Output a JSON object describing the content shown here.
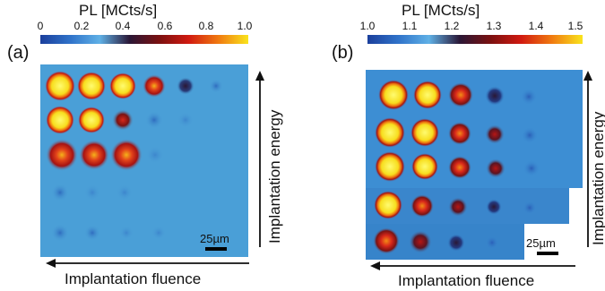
{
  "colormap": {
    "stops": [
      "#1b3f9c",
      "#2f72c9",
      "#5fb0e6",
      "#2a1736",
      "#7a1010",
      "#d11a10",
      "#f07a10",
      "#f9e41d"
    ],
    "background": "#4a9fd7"
  },
  "panel_a": {
    "label": "(a)",
    "colorbar_title": "PL [MCts/s]",
    "colorbar_ticks": [
      "0",
      "0.2",
      "0.4",
      "0.6",
      "0.8",
      "1.0"
    ],
    "scale_label": "25µm",
    "energy_label": "Implantation energy",
    "fluence_label": "Implantation fluence"
  },
  "panel_b": {
    "label": "(b)",
    "colorbar_title": "PL [MCts/s]",
    "colorbar_ticks": [
      "1.0",
      "1.1",
      "1.2",
      "1.3",
      "1.4",
      "1.5"
    ],
    "scale_label": "25µm",
    "energy_label": "Implantation energy",
    "fluence_label": "Implantation fluence"
  }
}
